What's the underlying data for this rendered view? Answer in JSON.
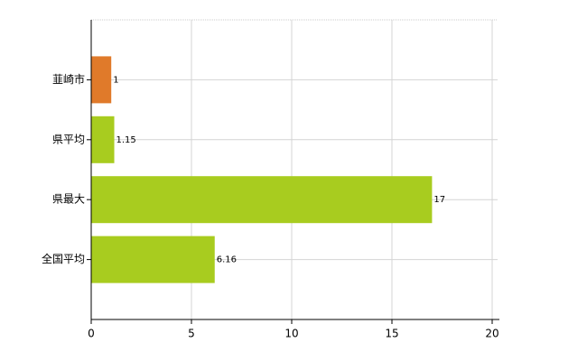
{
  "chart_data": {
    "type": "bar",
    "orientation": "horizontal",
    "categories": [
      "韮崎市",
      "県平均",
      "県最大",
      "全国平均"
    ],
    "values": [
      1,
      1.15,
      17,
      6.16
    ],
    "colors": [
      "#e07a2a",
      "#a8cc1f",
      "#a8cc1f",
      "#a8cc1f"
    ],
    "xlim": [
      0,
      20
    ],
    "xticks": [
      0,
      5,
      10,
      15,
      20
    ],
    "grid": true
  }
}
